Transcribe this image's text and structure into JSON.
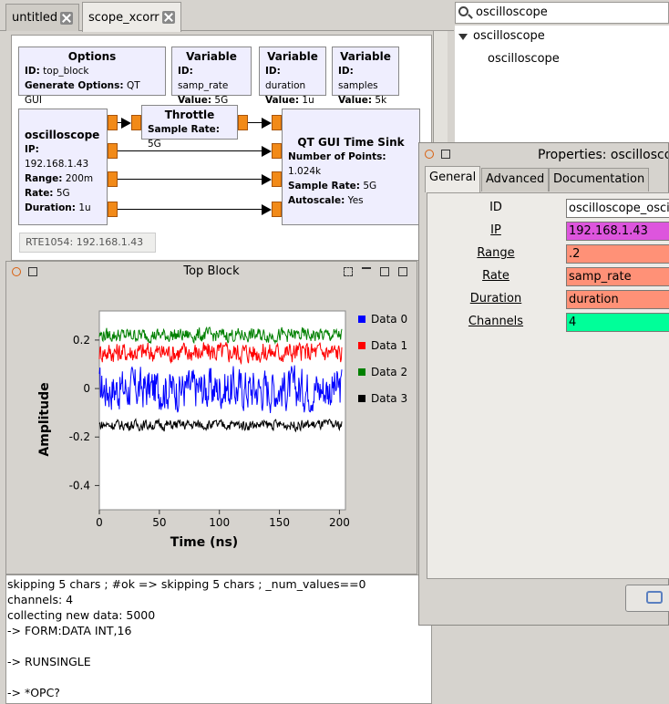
{
  "tabs": [
    {
      "label": "untitled"
    },
    {
      "label": "scope_xcorr"
    }
  ],
  "search": {
    "value": "oscilloscope"
  },
  "tree": {
    "category": "oscilloscope",
    "item": "oscilloscope"
  },
  "blocks": {
    "options": {
      "title": "Options",
      "id_label": "ID:",
      "id_value": "top_block",
      "gen_label": "Generate Options:",
      "gen_value": "QT GUI"
    },
    "var1": {
      "title": "Variable",
      "id_label": "ID:",
      "id_value": "samp_rate",
      "val_label": "Value:",
      "val_value": "5G"
    },
    "var2": {
      "title": "Variable",
      "id_label": "ID:",
      "id_value": "duration",
      "val_label": "Value:",
      "val_value": "1u"
    },
    "var3": {
      "title": "Variable",
      "id_label": "ID:",
      "id_value": "samples",
      "val_label": "Value:",
      "val_value": "5k"
    },
    "scope": {
      "title": "oscilloscope",
      "ip_label": "IP:",
      "ip_value": "192.168.1.43",
      "range_label": "Range:",
      "range_value": "200m",
      "rate_label": "Rate:",
      "rate_value": "5G",
      "dur_label": "Duration:",
      "dur_value": "1u"
    },
    "throttle": {
      "title": "Throttle",
      "sr_label": "Sample Rate:",
      "sr_value": "5G"
    },
    "sink": {
      "title": "QT GUI Time Sink",
      "np_label": "Number of Points:",
      "np_value": "1.024k",
      "sr_label": "Sample Rate:",
      "sr_value": "5G",
      "as_label": "Autoscale:",
      "as_value": "Yes"
    },
    "hint": "RTE1054: 192.168.1.43"
  },
  "plot_window": {
    "title": "Top Block"
  },
  "chart_data": {
    "type": "line",
    "title": "",
    "xlabel": "Time (ns)",
    "ylabel": "Amplitude",
    "xlim": [
      0,
      205
    ],
    "ylim": [
      -0.5,
      0.32
    ],
    "xticks": [
      "0",
      "50",
      "100",
      "150",
      "200"
    ],
    "xtick_values": [
      0,
      50,
      100,
      150,
      200
    ],
    "yticks": [
      "0.2",
      "0",
      "-0.2",
      "-0.4"
    ],
    "ytick_values": [
      0.2,
      0,
      -0.2,
      -0.4
    ],
    "grid": false,
    "legend_position": "right",
    "series": [
      {
        "name": "Data 0",
        "color": "#0000ff",
        "mean": 0.0,
        "spread": 0.12
      },
      {
        "name": "Data 1",
        "color": "#ff0000",
        "mean": 0.15,
        "spread": 0.06
      },
      {
        "name": "Data 2",
        "color": "#008000",
        "mean": 0.22,
        "spread": 0.04
      },
      {
        "name": "Data 3",
        "color": "#000000",
        "mean": -0.15,
        "spread": 0.03
      }
    ]
  },
  "console": {
    "lines": [
      "skipping 5 chars ; #ok => skipping 5 chars ; _num_values==0",
      "channels: 4",
      "collecting new data: 5000",
      "-> FORM:DATA INT,16",
      "",
      "-> RUNSINGLE",
      "",
      "-> *OPC?"
    ]
  },
  "properties": {
    "title": "Properties: oscilloscope",
    "tabs": [
      "General",
      "Advanced",
      "Documentation"
    ],
    "fields": [
      {
        "label": "ID",
        "value": "oscilloscope_osci",
        "color": "#ffffff",
        "underline": false
      },
      {
        "label": "IP",
        "value": "192.168.1.43",
        "color": "#dd55dd",
        "underline": true
      },
      {
        "label": "Range",
        "value": ".2",
        "color": "#ff9177",
        "underline": true
      },
      {
        "label": "Rate",
        "value": "samp_rate",
        "color": "#ff9177",
        "underline": true
      },
      {
        "label": "Duration",
        "value": "duration",
        "color": "#ff9177",
        "underline": true
      },
      {
        "label": "Channels",
        "value": "4",
        "color": "#00ff99",
        "underline": true
      }
    ]
  }
}
